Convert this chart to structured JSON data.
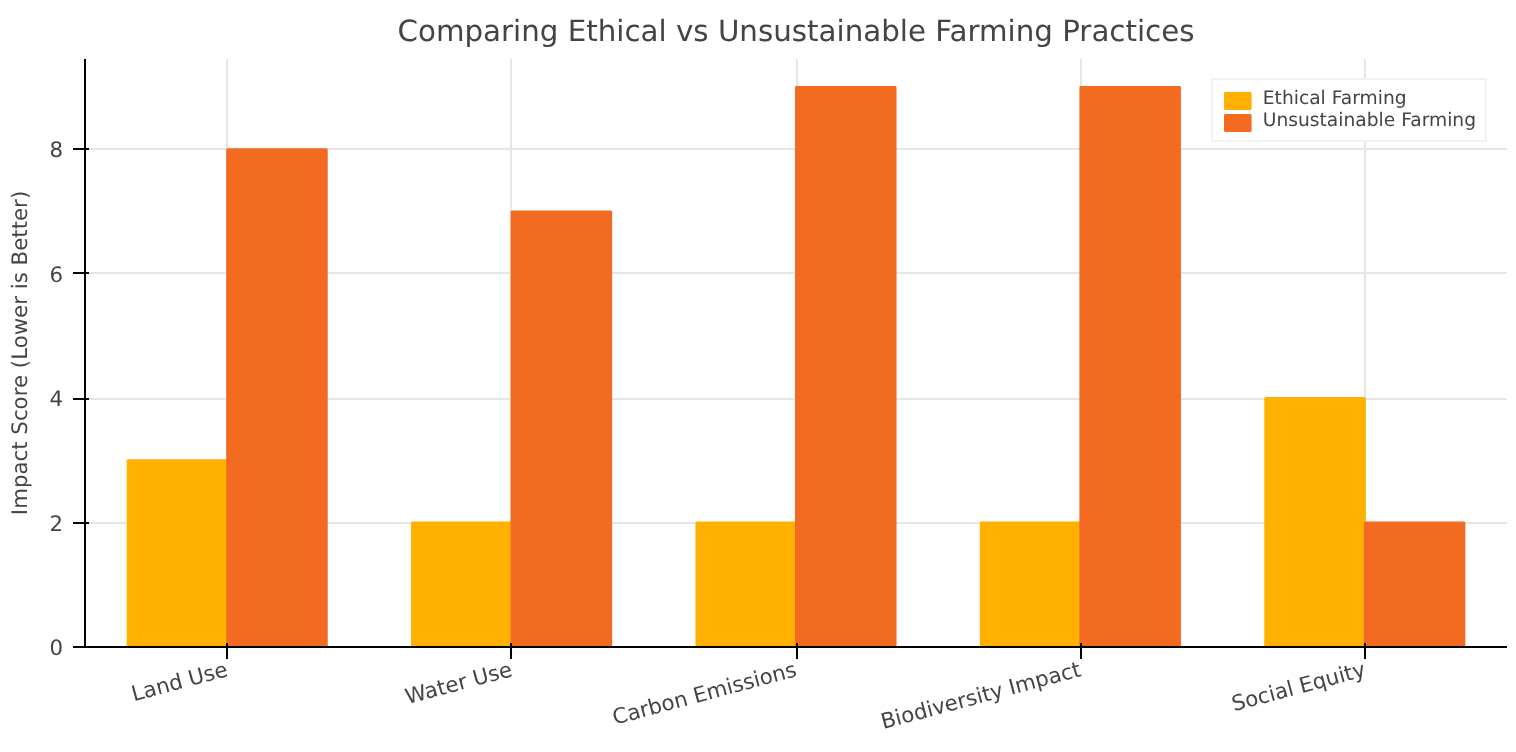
{
  "chart_data": {
    "type": "bar",
    "title": "Comparing Ethical vs Unsustainable Farming Practices",
    "ylabel": "Impact Score (Lower is Better)",
    "categories": [
      "Land Use",
      "Water Use",
      "Carbon Emissions",
      "Biodiversity Impact",
      "Social Equity"
    ],
    "series": [
      {
        "name": "Ethical Farming",
        "color": "#ffb000",
        "values": [
          3,
          2,
          2,
          2,
          4
        ]
      },
      {
        "name": "Unsustainable Farming",
        "color": "#f26b21",
        "values": [
          8,
          7,
          9,
          9,
          2
        ]
      }
    ],
    "ylim": [
      0,
      9.45
    ],
    "yticks": [
      0,
      2,
      4,
      6,
      8
    ],
    "grid": true,
    "legend": "top right"
  }
}
